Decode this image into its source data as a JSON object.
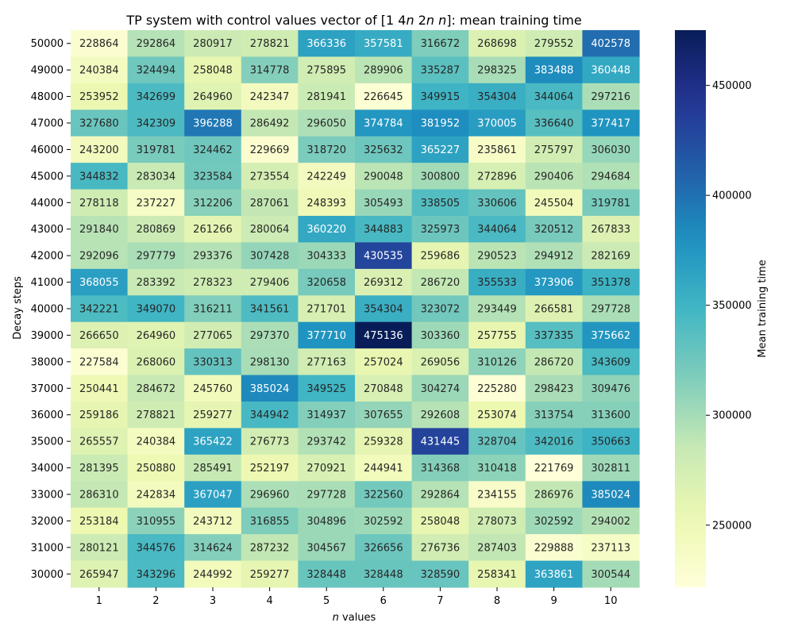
{
  "chart_data": {
    "type": "heatmap",
    "title": "TP system with control values vector of [1 4n 2n n]: mean training time",
    "title_parts": {
      "prefix": "TP system with control values vector of [1 4",
      "n1": "n",
      "mid1": " 2",
      "n2": "n",
      "mid2": " ",
      "n3": "n",
      "suffix": "]: mean training time"
    },
    "xlabel": "n values",
    "xlabel_parts": {
      "var": "n",
      "rest": " values"
    },
    "ylabel": "Decay steps",
    "colorbar_label": "Mean training time",
    "colormap": "YlGnBu",
    "color_range": [
      221769,
      475136
    ],
    "colorbar_ticks": [
      250000,
      300000,
      350000,
      400000,
      450000
    ],
    "x": [
      "1",
      "2",
      "3",
      "4",
      "5",
      "6",
      "7",
      "8",
      "9",
      "10"
    ],
    "y": [
      "50000",
      "49000",
      "48000",
      "47000",
      "46000",
      "45000",
      "44000",
      "43000",
      "42000",
      "41000",
      "40000",
      "39000",
      "38000",
      "37000",
      "36000",
      "35000",
      "34000",
      "33000",
      "32000",
      "31000",
      "30000"
    ],
    "values": [
      [
        228864,
        292864,
        280917,
        278821,
        366336,
        357581,
        316672,
        268698,
        279552,
        402578
      ],
      [
        240384,
        324494,
        258048,
        314778,
        275895,
        289906,
        335287,
        298325,
        383488,
        360448
      ],
      [
        253952,
        342699,
        264960,
        242347,
        281941,
        226645,
        349915,
        354304,
        344064,
        297216
      ],
      [
        327680,
        342309,
        396288,
        286492,
        296050,
        374784,
        381952,
        370005,
        336640,
        377417
      ],
      [
        243200,
        319781,
        324462,
        229669,
        318720,
        325632,
        365227,
        235861,
        275797,
        306030
      ],
      [
        344832,
        283034,
        323584,
        273554,
        242249,
        290048,
        300800,
        272896,
        290406,
        294684
      ],
      [
        278118,
        237227,
        312206,
        287061,
        248393,
        305493,
        338505,
        330606,
        245504,
        319781
      ],
      [
        291840,
        280869,
        261266,
        280064,
        360220,
        344883,
        325973,
        344064,
        320512,
        267833
      ],
      [
        292096,
        297779,
        293376,
        307428,
        304333,
        430535,
        259686,
        290523,
        294912,
        282169
      ],
      [
        368055,
        283392,
        278323,
        279406,
        320658,
        269312,
        286720,
        355533,
        373906,
        351378
      ],
      [
        342221,
        349070,
        316211,
        341561,
        271701,
        354304,
        323072,
        293449,
        266581,
        297728
      ],
      [
        266650,
        264960,
        277065,
        297370,
        377710,
        475136,
        303360,
        257755,
        337335,
        375662
      ],
      [
        227584,
        268060,
        330313,
        298130,
        277163,
        257024,
        269056,
        310126,
        286720,
        343609
      ],
      [
        250441,
        284672,
        245760,
        385024,
        349525,
        270848,
        304274,
        225280,
        298423,
        309476
      ],
      [
        259186,
        278821,
        259277,
        344942,
        314937,
        307655,
        292608,
        253074,
        313754,
        313600
      ],
      [
        265557,
        240384,
        365422,
        276773,
        293742,
        259328,
        431445,
        328704,
        342016,
        350663
      ],
      [
        281395,
        250880,
        285491,
        252197,
        270921,
        244941,
        314368,
        310418,
        221769,
        302811
      ],
      [
        286310,
        242834,
        367047,
        296960,
        297728,
        322560,
        292864,
        234155,
        286976,
        385024
      ],
      [
        253184,
        310955,
        243712,
        316855,
        304896,
        302592,
        258048,
        278073,
        302592,
        294002
      ],
      [
        280121,
        344576,
        314624,
        287232,
        304567,
        326656,
        276736,
        287403,
        229888,
        237113
      ],
      [
        265947,
        343296,
        244992,
        259277,
        328448,
        328448,
        328590,
        258341,
        363861,
        300544
      ]
    ]
  }
}
